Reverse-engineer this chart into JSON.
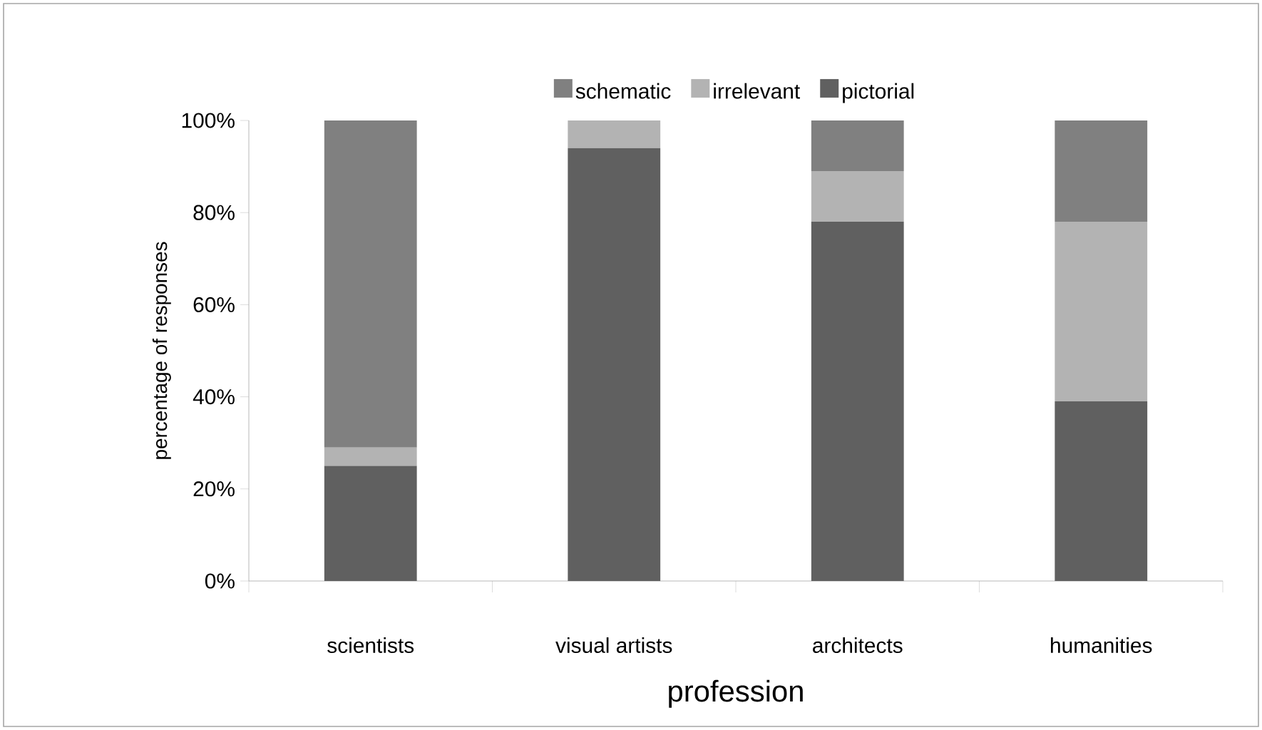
{
  "chart_data": {
    "type": "bar",
    "stacked": true,
    "xlabel": "profession",
    "ylabel": "percentage of responses",
    "categories": [
      "scientists",
      "visual artists",
      "architects",
      "humanities"
    ],
    "series": [
      {
        "name": "pictorial",
        "color": "#606060",
        "values": [
          25,
          94,
          78,
          39
        ]
      },
      {
        "name": "irrelevant",
        "color": "#b3b3b3",
        "values": [
          4,
          6,
          11,
          39
        ]
      },
      {
        "name": "schematic",
        "color": "#808080",
        "values": [
          71,
          0,
          11,
          22
        ]
      }
    ],
    "ylim": [
      0,
      100
    ],
    "yticks": [
      {
        "value": 0,
        "label": "0%"
      },
      {
        "value": 20,
        "label": "20%"
      },
      {
        "value": 40,
        "label": "40%"
      },
      {
        "value": 60,
        "label": "60%"
      },
      {
        "value": 80,
        "label": "80%"
      },
      {
        "value": 100,
        "label": "100%"
      }
    ],
    "grid": false,
    "legend": "top"
  }
}
